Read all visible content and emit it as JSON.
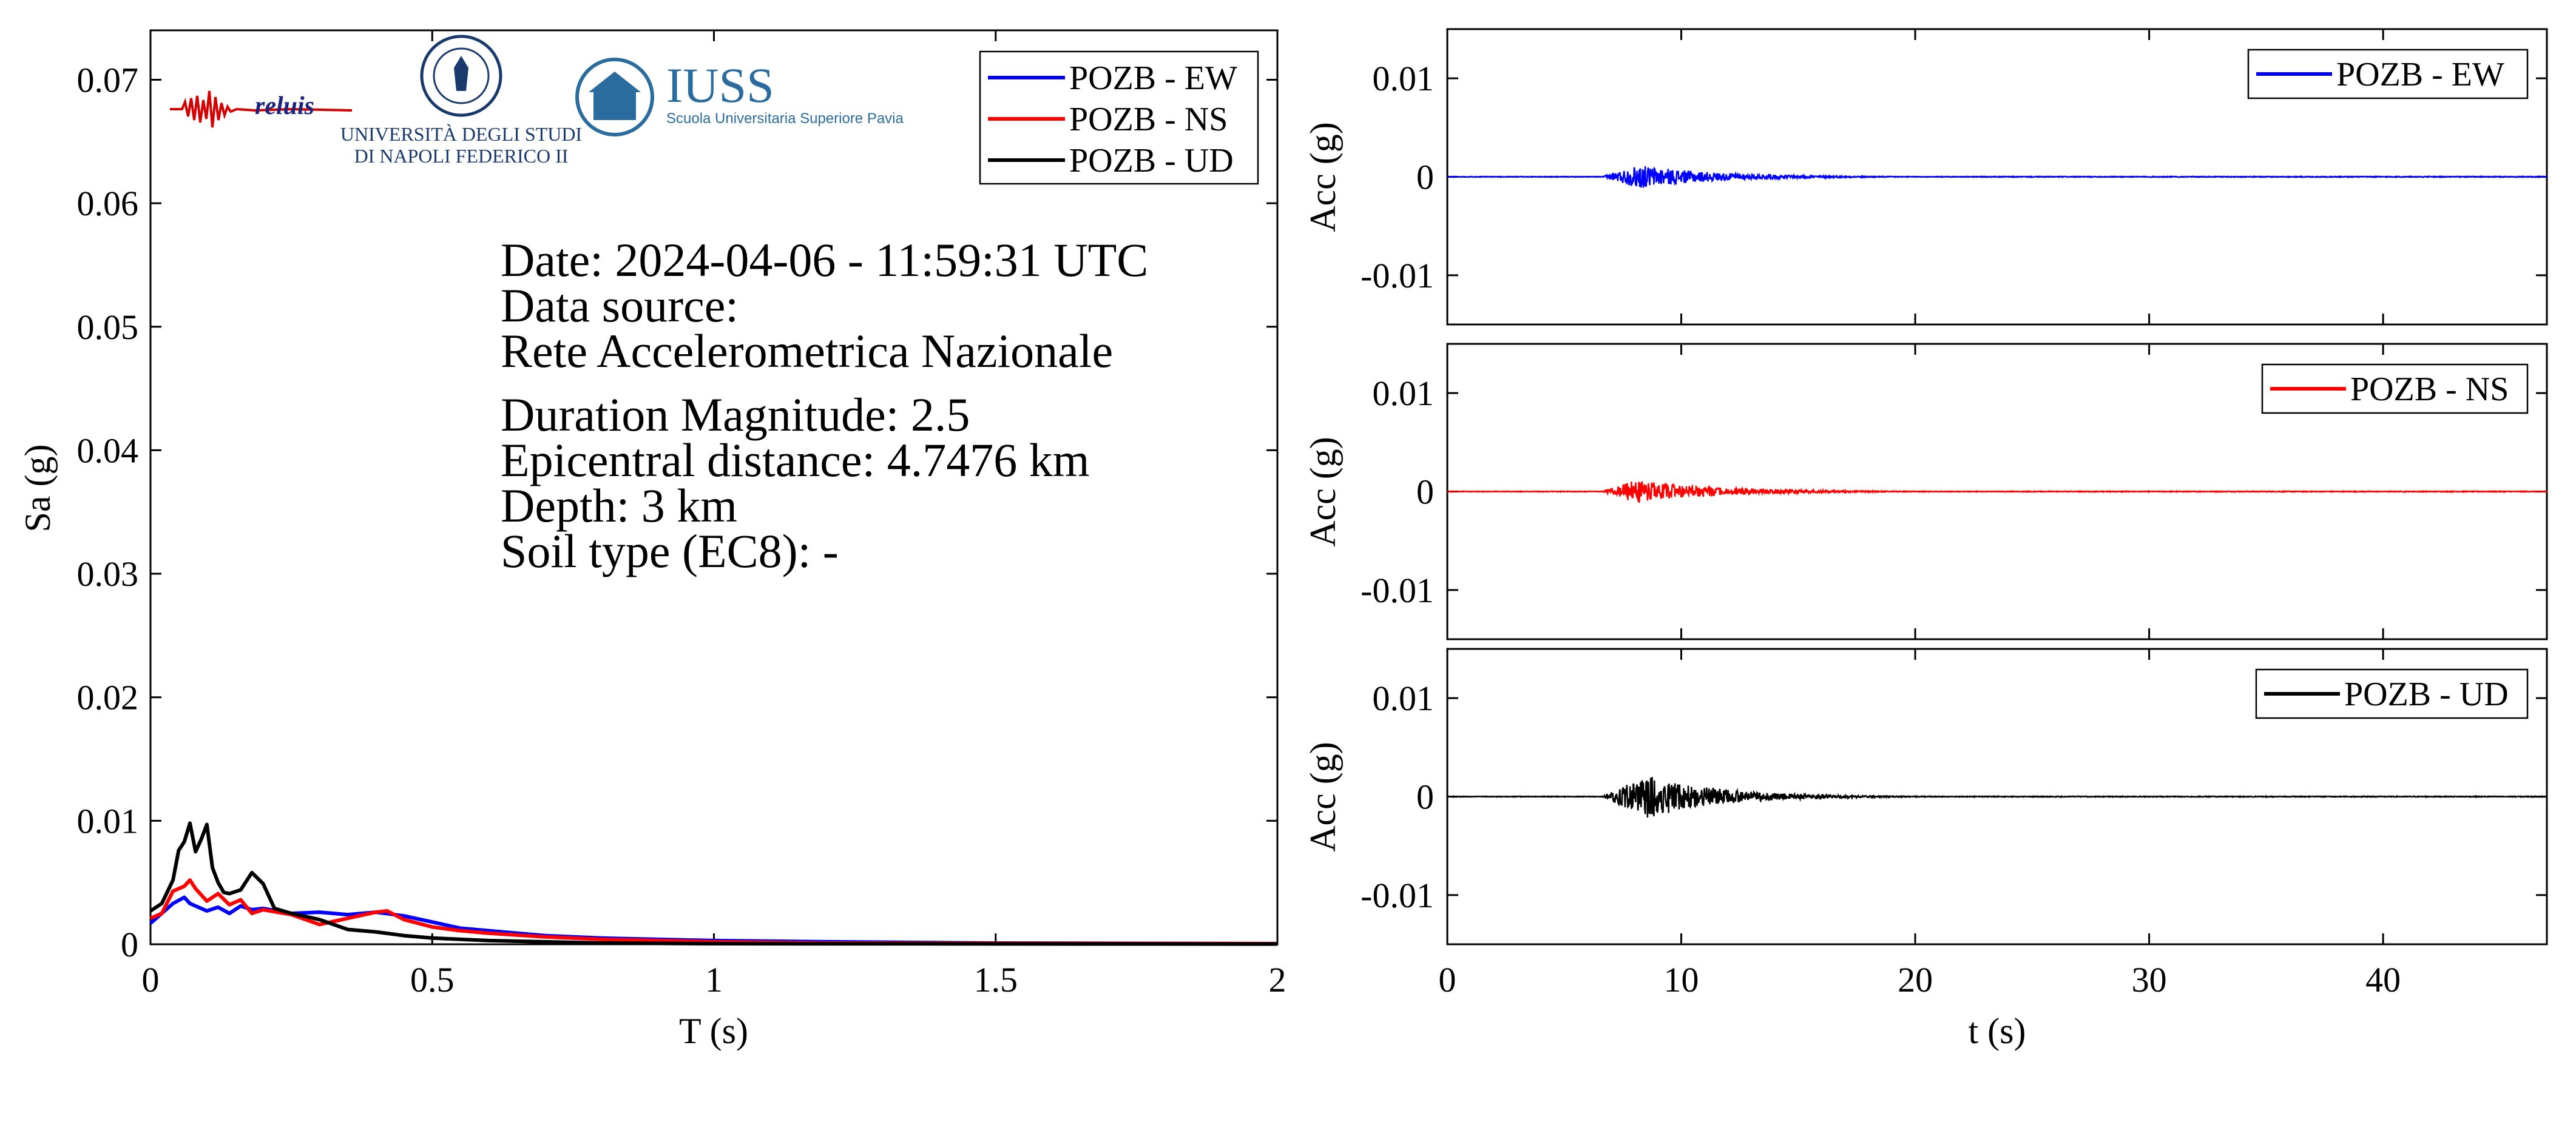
{
  "chart_data": [
    {
      "type": "line",
      "xlabel": "T (s)",
      "ylabel": "Sa (g)",
      "xlim": [
        0,
        2
      ],
      "ylim": [
        0,
        0.074
      ],
      "xticks": [
        0,
        0.5,
        1,
        1.5,
        2
      ],
      "xtick_labels": [
        "0",
        "0.5",
        "1",
        "1.5",
        "2"
      ],
      "yticks": [
        0,
        0.01,
        0.02,
        0.03,
        0.04,
        0.05,
        0.06,
        0.07
      ],
      "ytick_labels": [
        "0",
        "0.01",
        "0.02",
        "0.03",
        "0.04",
        "0.05",
        "0.06",
        "0.07"
      ],
      "legend_position": "top-right",
      "series": [
        {
          "name": "POZB - EW",
          "color": "#0000ff",
          "x": [
            0,
            0.02,
            0.04,
            0.06,
            0.07,
            0.08,
            0.1,
            0.12,
            0.14,
            0.16,
            0.18,
            0.2,
            0.25,
            0.3,
            0.35,
            0.4,
            0.45,
            0.5,
            0.55,
            0.6,
            0.7,
            0.8,
            0.9,
            1.0,
            1.2,
            1.5,
            2.0
          ],
          "y": [
            0.0017,
            0.0025,
            0.0033,
            0.0038,
            0.0033,
            0.0031,
            0.0027,
            0.003,
            0.0025,
            0.0031,
            0.0028,
            0.0029,
            0.0025,
            0.0026,
            0.0024,
            0.0026,
            0.0023,
            0.0018,
            0.0013,
            0.0011,
            0.0007,
            0.0005,
            0.0004,
            0.0003,
            0.0002,
            0.0001,
            5e-05
          ]
        },
        {
          "name": "POZB - NS",
          "color": "#ff0000",
          "x": [
            0,
            0.02,
            0.04,
            0.06,
            0.07,
            0.08,
            0.1,
            0.12,
            0.14,
            0.16,
            0.18,
            0.2,
            0.25,
            0.3,
            0.35,
            0.4,
            0.42,
            0.45,
            0.5,
            0.55,
            0.6,
            0.7,
            0.8,
            0.9,
            1.0,
            1.2,
            1.5,
            2.0
          ],
          "y": [
            0.0021,
            0.0025,
            0.0043,
            0.0047,
            0.0052,
            0.0045,
            0.0035,
            0.0041,
            0.0032,
            0.0036,
            0.0025,
            0.0028,
            0.0024,
            0.0016,
            0.0021,
            0.0026,
            0.0027,
            0.002,
            0.0014,
            0.0011,
            0.0009,
            0.0006,
            0.0004,
            0.0003,
            0.0002,
            0.0001,
            8e-05,
            5e-05
          ]
        },
        {
          "name": "POZB - UD",
          "color": "#000000",
          "x": [
            0,
            0.02,
            0.04,
            0.05,
            0.06,
            0.07,
            0.08,
            0.09,
            0.1,
            0.11,
            0.12,
            0.13,
            0.14,
            0.16,
            0.18,
            0.2,
            0.22,
            0.25,
            0.3,
            0.35,
            0.4,
            0.45,
            0.5,
            0.6,
            0.7,
            0.8,
            1.0,
            1.5,
            2.0
          ],
          "y": [
            0.0027,
            0.0033,
            0.0052,
            0.0076,
            0.0083,
            0.0098,
            0.0075,
            0.0085,
            0.0097,
            0.0062,
            0.005,
            0.0042,
            0.0041,
            0.0044,
            0.0058,
            0.0049,
            0.0029,
            0.0025,
            0.002,
            0.0012,
            0.001,
            0.0007,
            0.0005,
            0.0003,
            0.0002,
            0.0001,
            5e-05,
            3e-05,
            2e-05
          ]
        }
      ]
    },
    {
      "type": "line",
      "xlabel": "",
      "ylabel": "Acc (g)",
      "xlim": [
        0,
        47
      ],
      "ylim": [
        -0.015,
        0.015
      ],
      "xticks": [
        0,
        10,
        20,
        30,
        40
      ],
      "yticks": [
        0.01,
        0,
        -0.01
      ],
      "ytick_labels": [
        "0.01",
        "0",
        "-0.01"
      ],
      "legend_position": "top-right",
      "signal": {
        "onset_s": 6.6,
        "peak_s": 8.2,
        "peak_amplitude": 0.0012,
        "decay_s": 3.2,
        "end_s": 22
      },
      "series": [
        {
          "name": "POZB - EW",
          "color": "#0000ff"
        }
      ]
    },
    {
      "type": "line",
      "xlabel": "",
      "ylabel": "Acc (g)",
      "xlim": [
        0,
        47
      ],
      "ylim": [
        -0.015,
        0.015
      ],
      "xticks": [
        0,
        10,
        20,
        30,
        40
      ],
      "yticks": [
        0.01,
        0,
        -0.01
      ],
      "ytick_labels": [
        "0.01",
        "0",
        "-0.01"
      ],
      "legend_position": "top-right",
      "signal": {
        "onset_s": 6.6,
        "peak_s": 8.0,
        "peak_amplitude": 0.0012,
        "decay_s": 3.5,
        "end_s": 23
      },
      "series": [
        {
          "name": "POZB - NS",
          "color": "#ff0000"
        }
      ]
    },
    {
      "type": "line",
      "xlabel": "t (s)",
      "ylabel": "Acc (g)",
      "xlim": [
        0,
        47
      ],
      "ylim": [
        -0.015,
        0.015
      ],
      "xticks": [
        0,
        10,
        20,
        30,
        40
      ],
      "xtick_labels": [
        "0",
        "10",
        "20",
        "30",
        "40"
      ],
      "yticks": [
        0.01,
        0,
        -0.01
      ],
      "ytick_labels": [
        "0.01",
        "0",
        "-0.01"
      ],
      "legend_position": "top-right",
      "signal": {
        "onset_s": 6.6,
        "peak_s": 8.6,
        "peak_amplitude": 0.0022,
        "decay_s": 3.0,
        "end_s": 22
      },
      "series": [
        {
          "name": "POZB - UD",
          "color": "#000000"
        }
      ]
    }
  ],
  "info_lines": [
    "Date: 2024-04-06 - 11:59:31 UTC",
    "Data source:",
    "Rete Accelerometrica Nazionale",
    "Duration Magnitude: 2.5",
    "Epicentral distance: 4.7476 km",
    "Depth: 3 km",
    "Soil type (EC8): -"
  ],
  "logos": {
    "reluis": "reluis",
    "unina_line1": "UNIVERSITÀ DEGLI STUDI",
    "unina_line2": "DI NAPOLI FEDERICO II",
    "iuss": "IUSS",
    "iuss_sub": "Scuola Universitaria Superiore Pavia"
  },
  "colors": {
    "axis": "#000000",
    "background": "#ffffff",
    "iuss_blue": "#2b6c9e",
    "reluis_red": "#d40000",
    "reluis_blue": "#1a237e"
  }
}
